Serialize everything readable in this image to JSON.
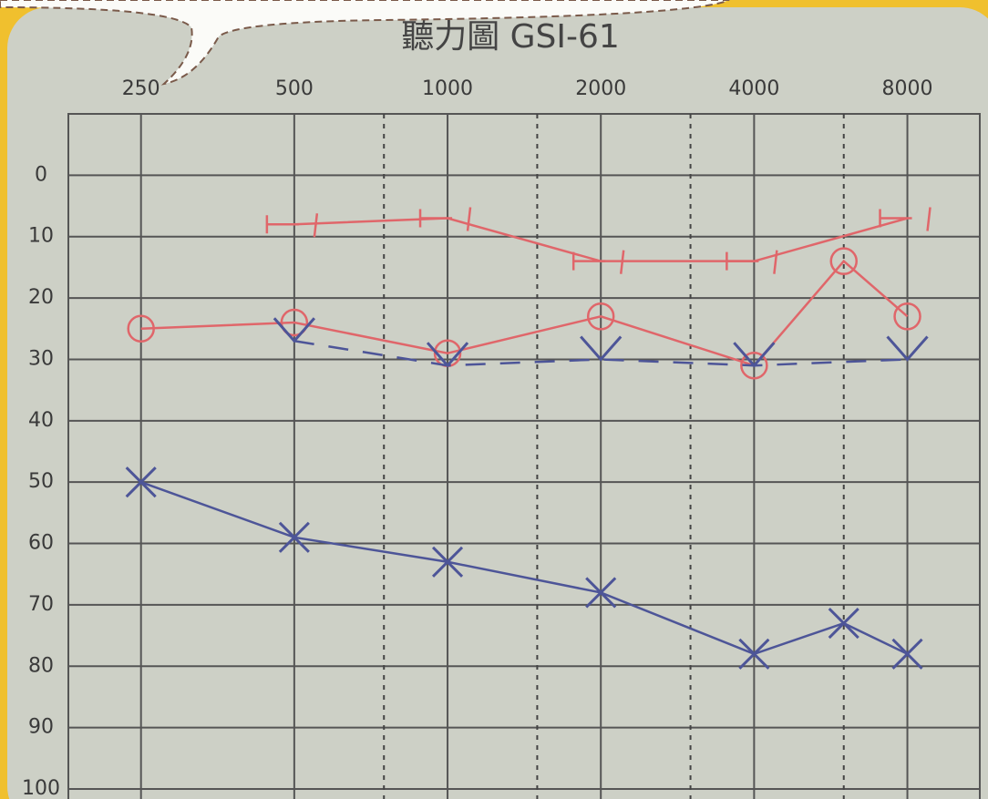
{
  "chart_data": {
    "type": "line",
    "title": "聽力圖 GSI-61",
    "xscale": "log",
    "xlim": [
      180,
      11100
    ],
    "xticks": [
      250,
      500,
      1000,
      2000,
      4000,
      8000
    ],
    "xticks_minor": [
      750,
      1500,
      3000,
      6000
    ],
    "ylim": [
      -10,
      100
    ],
    "yticks": [
      0,
      10,
      20,
      30,
      40,
      50,
      60,
      70,
      80,
      90,
      100
    ],
    "y_inverted": true,
    "grid": true,
    "series": [
      {
        "color": "#e0666a",
        "marker": "bracket",
        "dash": false,
        "x": [
          500,
          1000,
          2000,
          4000,
          8000
        ],
        "values": [
          8,
          7,
          14,
          14,
          7
        ]
      },
      {
        "color": "#e0666a",
        "marker": "circle",
        "dash": false,
        "x": [
          250,
          500,
          1000,
          2000,
          4000,
          6000,
          8000
        ],
        "values": [
          25,
          24,
          29,
          23,
          31,
          14,
          23
        ]
      },
      {
        "color": "#4d5598",
        "marker": "v",
        "dash": true,
        "x": [
          500,
          1000,
          2000,
          4000,
          8000
        ],
        "values": [
          27,
          31,
          30,
          31,
          30
        ]
      },
      {
        "color": "#4d5598",
        "marker": "x",
        "dash": false,
        "x": [
          250,
          500,
          1000,
          2000,
          4000,
          6000,
          8000
        ],
        "values": [
          50,
          59,
          63,
          68,
          78,
          73,
          78
        ]
      }
    ]
  }
}
